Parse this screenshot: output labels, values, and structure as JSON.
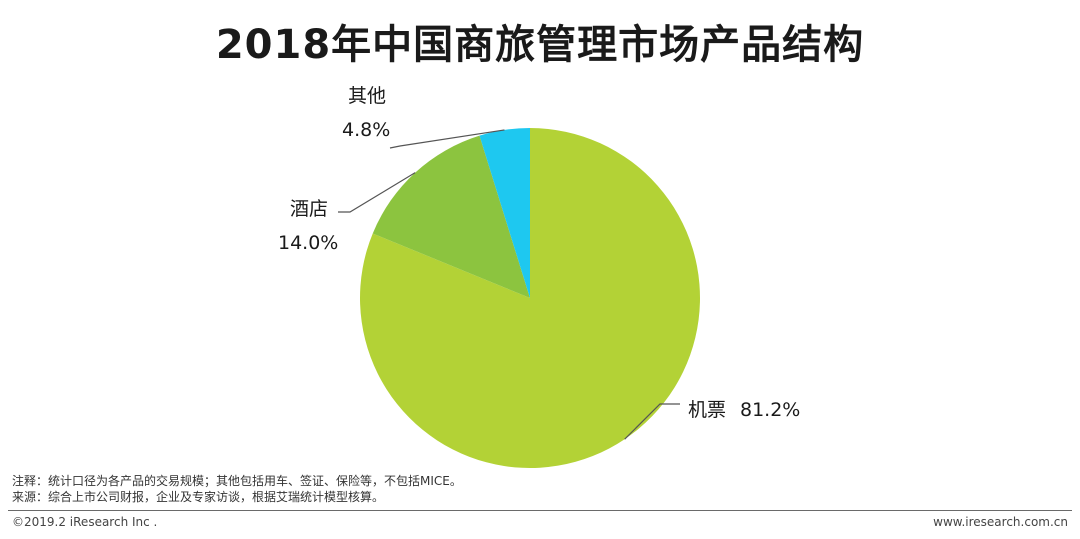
{
  "chart_data": {
    "type": "pie",
    "title": "2018年中国商旅管理市场产品结构",
    "categories": [
      "机票",
      "酒店",
      "其他"
    ],
    "values": [
      81.2,
      14.0,
      4.8
    ],
    "value_labels": [
      "81.2%",
      "14.0%",
      "4.8%"
    ],
    "colors": [
      "#b3d236",
      "#8cc43f",
      "#1ec8f0"
    ]
  },
  "notes": {
    "note": "注释：统计口径为各产品的交易规模；其他包括用车、签证、保险等，不包括MICE。",
    "source": "来源：综合上市公司财报，企业及专家访谈，根据艾瑞统计模型核算。"
  },
  "footer": {
    "copyright": "©2019.2 iResearch Inc .",
    "website": "www.iresearch.com.cn"
  }
}
